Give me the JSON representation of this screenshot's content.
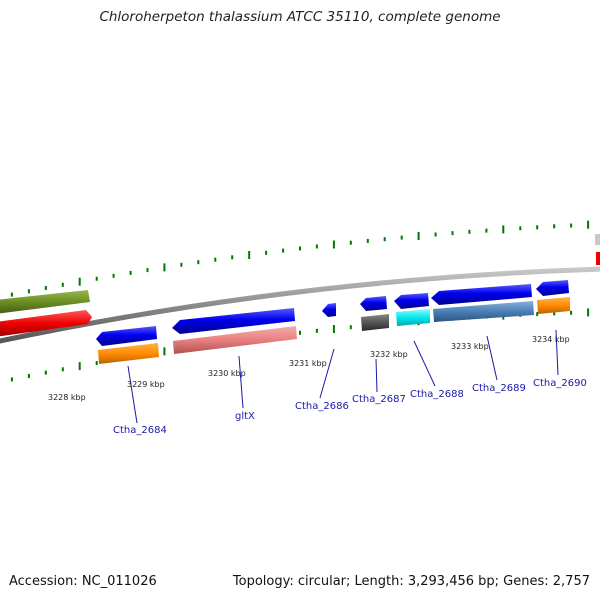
{
  "title": "Chloroherpeton thalassium ATCC 35110, complete genome",
  "footer": {
    "accession": "Accession: NC_011026",
    "summary": "Topology: circular; Length: 3,293,456 bp; Genes: 2,757"
  },
  "scale_labels": [
    "3228 kbp",
    "3229 kbp",
    "3230 kbp",
    "3231 kbp",
    "3232 kbp",
    "3233 kbp",
    "3234 kbp"
  ],
  "gene_labels": [
    "Ctha_2684",
    "gltX",
    "Ctha_2686",
    "Ctha_2687",
    "Ctha_2688",
    "Ctha_2689",
    "Ctha_2690"
  ],
  "colors": {
    "backbone": "#8a8a8a",
    "cds_forward": "#0000ee",
    "orange": "#ff8c00",
    "pink": "#e88080",
    "gray": "#555555",
    "cyan": "#00e8f0",
    "steel_blue": "#4a7fb5",
    "olive": "#6b8e23",
    "red": "#ee0000",
    "tick": "#007700",
    "label": "#1a1aa6"
  }
}
